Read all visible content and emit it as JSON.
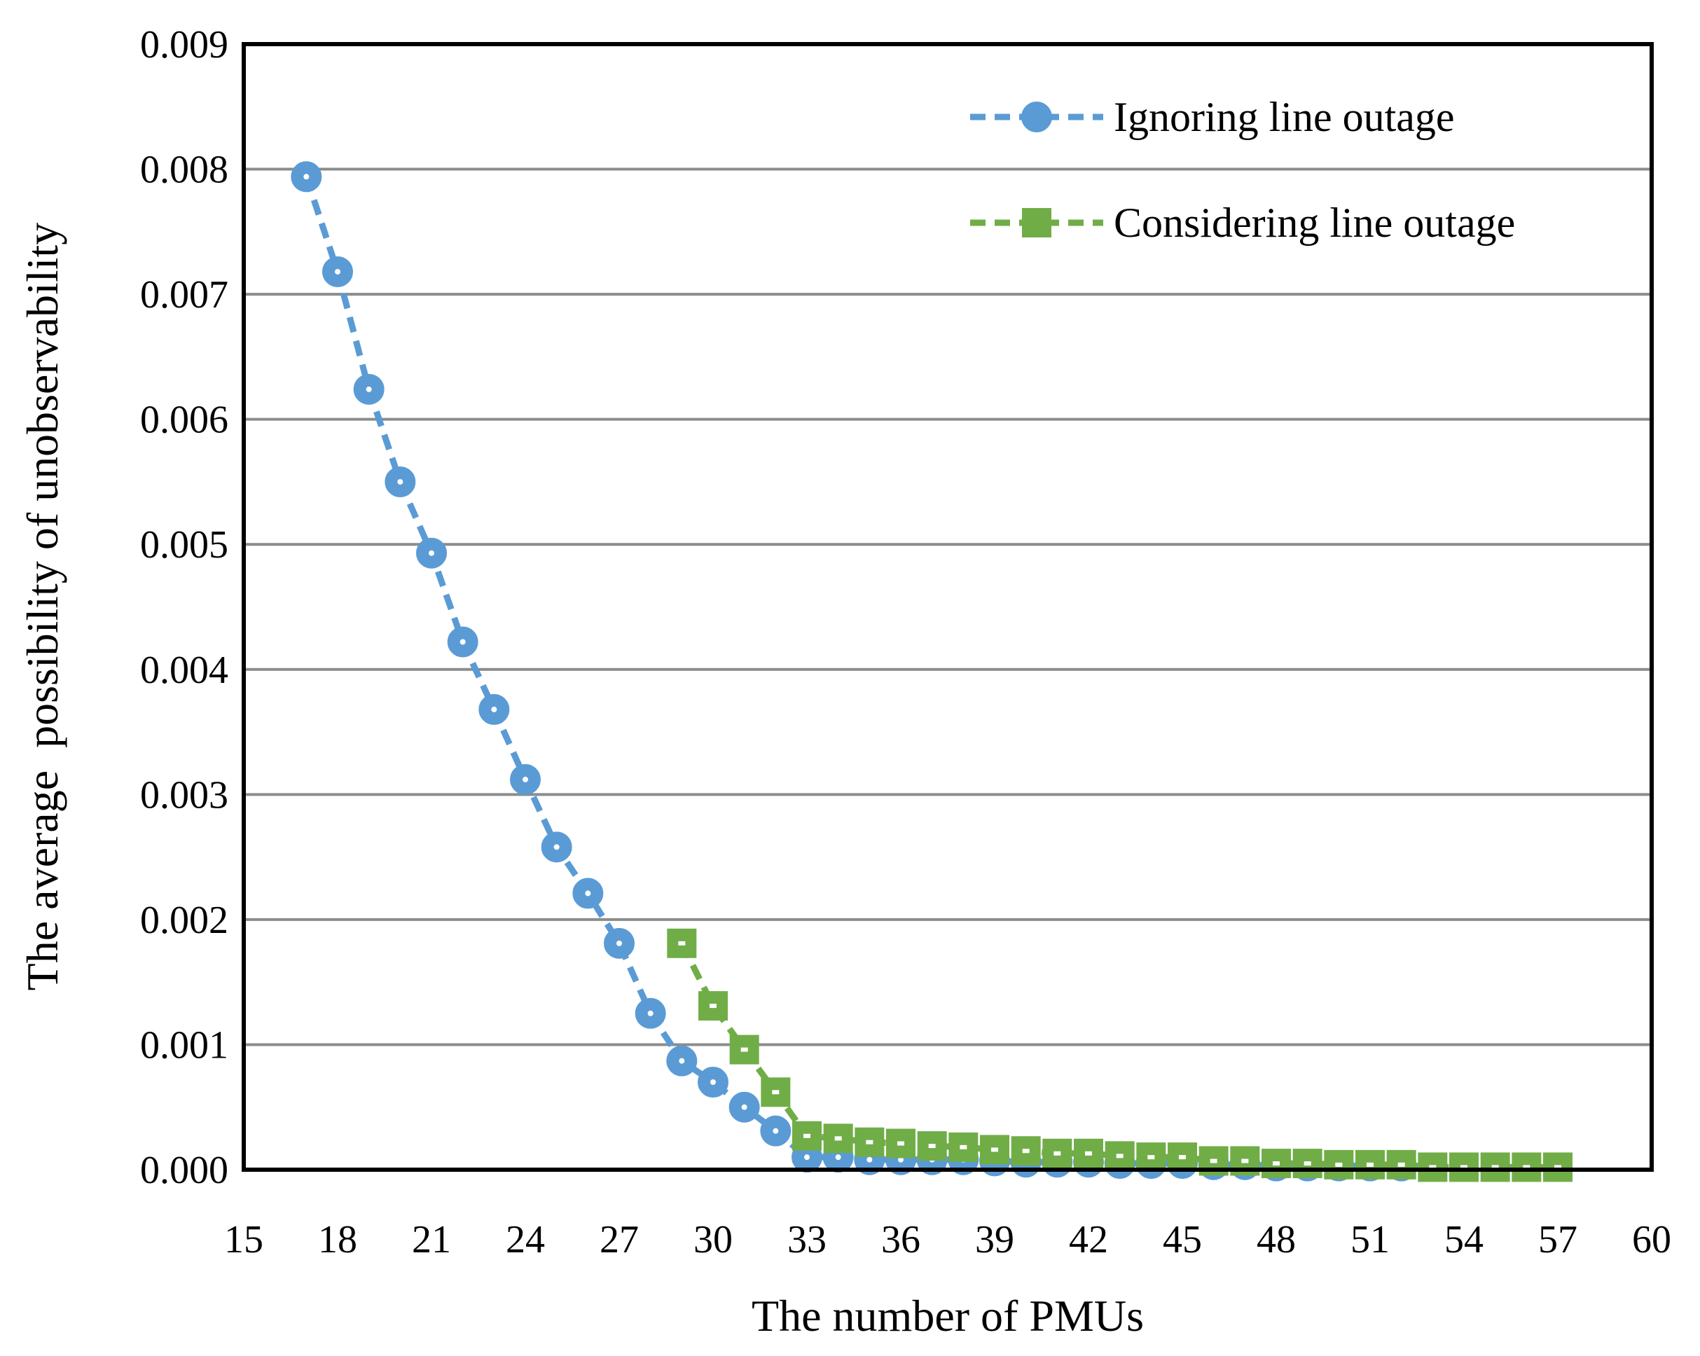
{
  "chart_data": {
    "type": "line",
    "title": "",
    "xlabel": "The number of PMUs",
    "ylabel": "The average  possibility of unobservability",
    "xlim": [
      15,
      60
    ],
    "ylim": [
      0,
      0.009
    ],
    "xticks": [
      "15",
      "18",
      "21",
      "24",
      "27",
      "30",
      "33",
      "36",
      "39",
      "42",
      "45",
      "48",
      "51",
      "54",
      "57",
      "60"
    ],
    "yticks": [
      "0.000",
      "0.001",
      "0.002",
      "0.003",
      "0.004",
      "0.005",
      "0.006",
      "0.007",
      "0.008",
      "0.009"
    ],
    "grid": true,
    "legend_position": "top-right",
    "series": [
      {
        "name": "Ignoring line outage",
        "color": "#5b9bd5",
        "marker": "circle",
        "x": [
          17,
          18,
          19,
          20,
          21,
          22,
          23,
          24,
          25,
          26,
          27,
          28,
          29,
          30,
          31,
          32,
          33,
          34,
          35,
          36,
          37,
          38,
          39,
          40,
          41,
          42,
          43,
          44,
          45,
          46,
          47,
          48,
          49,
          50,
          51,
          52
        ],
        "values": [
          0.00794,
          0.00718,
          0.00624,
          0.0055,
          0.00493,
          0.00422,
          0.00368,
          0.00312,
          0.00258,
          0.00221,
          0.00181,
          0.00125,
          0.00087,
          0.0007,
          0.0005,
          0.00031,
          0.0001,
          0.0001,
          8e-05,
          8e-05,
          8e-05,
          8e-05,
          7e-05,
          6e-05,
          6e-05,
          6e-05,
          5e-05,
          5e-05,
          5e-05,
          4e-05,
          4e-05,
          3e-05,
          3e-05,
          3e-05,
          3e-05,
          3e-05
        ]
      },
      {
        "name": "Considering line outage",
        "color": "#70ad47",
        "marker": "square",
        "x": [
          29,
          30,
          31,
          32,
          33,
          34,
          35,
          36,
          37,
          38,
          39,
          40,
          41,
          42,
          43,
          44,
          45,
          46,
          47,
          48,
          49,
          50,
          51,
          52,
          53,
          54,
          55,
          56,
          57
        ],
        "values": [
          0.00181,
          0.00131,
          0.00096,
          0.00062,
          0.00027,
          0.00025,
          0.00022,
          0.00021,
          0.00019,
          0.00018,
          0.00016,
          0.00015,
          0.00013,
          0.00013,
          0.00011,
          0.0001,
          0.0001,
          7e-05,
          7e-05,
          5e-05,
          5e-05,
          4e-05,
          4e-05,
          4e-05,
          2e-05,
          2e-05,
          2e-05,
          2e-05,
          2e-05
        ]
      }
    ]
  }
}
